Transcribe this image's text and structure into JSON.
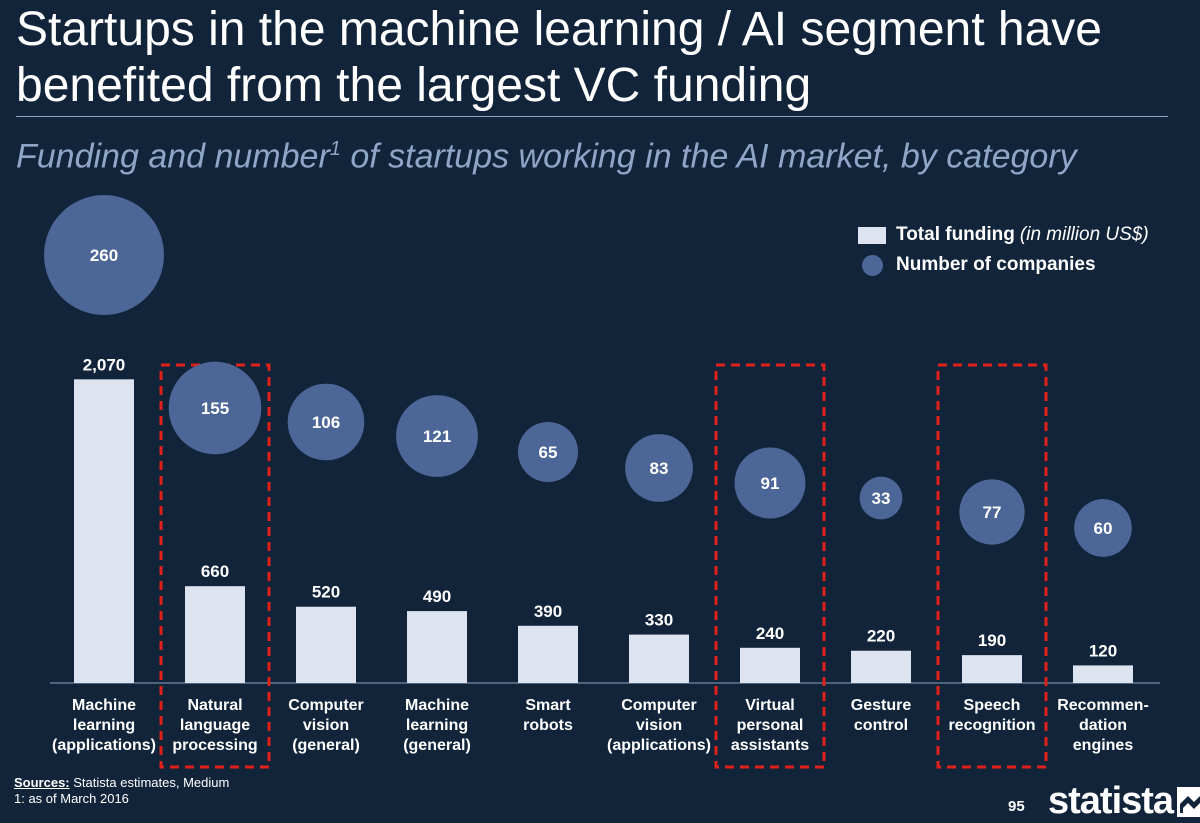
{
  "title": "Startups in the machine learning / AI segment have benefited from the largest VC funding",
  "subtitle": {
    "text_before": "Funding and number",
    "footnote_ref": "1",
    "text_after": " of startups working in the AI market, by category"
  },
  "legend": {
    "funding_label": "Total funding",
    "funding_unit": "(in million US$)",
    "companies_label": "Number of companies"
  },
  "colors": {
    "background": "#12243a",
    "bar": "#dde3ef",
    "bubble": "#4c6797",
    "highlight_box": "#e0201b"
  },
  "chart_data": {
    "type": "bar",
    "categories": [
      "Machine learning (applications)",
      "Natural language processing",
      "Computer vision (general)",
      "Machine learning (general)",
      "Smart robots",
      "Computer vision (applications)",
      "Virtual personal assistants",
      "Gesture control",
      "Speech recognition",
      "Recommen-dation engines"
    ],
    "category_lines": [
      [
        "Machine",
        "learning",
        "(applications)"
      ],
      [
        "Natural",
        "language",
        "processing"
      ],
      [
        "Computer",
        "vision",
        "(general)"
      ],
      [
        "Machine",
        "learning",
        "(general)"
      ],
      [
        "Smart",
        "robots"
      ],
      [
        "Computer",
        "vision",
        "(applications)"
      ],
      [
        "Virtual",
        "personal",
        "assistants"
      ],
      [
        "Gesture",
        "control"
      ],
      [
        "Speech",
        "recognition"
      ],
      [
        "Recommen-",
        "dation",
        "engines"
      ]
    ],
    "series": [
      {
        "name": "Total funding (in million US$)",
        "values": [
          2070,
          660,
          520,
          490,
          390,
          330,
          240,
          220,
          190,
          120
        ],
        "labels": [
          "2,070",
          "660",
          "520",
          "490",
          "390",
          "330",
          "240",
          "220",
          "190",
          "120"
        ]
      },
      {
        "name": "Number of companies",
        "values": [
          260,
          155,
          106,
          121,
          65,
          83,
          91,
          33,
          77,
          60
        ],
        "labels": [
          "260",
          "155",
          "106",
          "121",
          "65",
          "83",
          "91",
          "33",
          "77",
          "60"
        ]
      }
    ],
    "highlighted_categories": [
      1,
      6,
      8
    ],
    "grid": false,
    "legend_position": "top-right"
  },
  "footer": {
    "sources_label": "Sources:",
    "sources_text": " Statista estimates, Medium",
    "footnote": "1: as of March 2016",
    "page_number": "95",
    "brand": "statista"
  }
}
